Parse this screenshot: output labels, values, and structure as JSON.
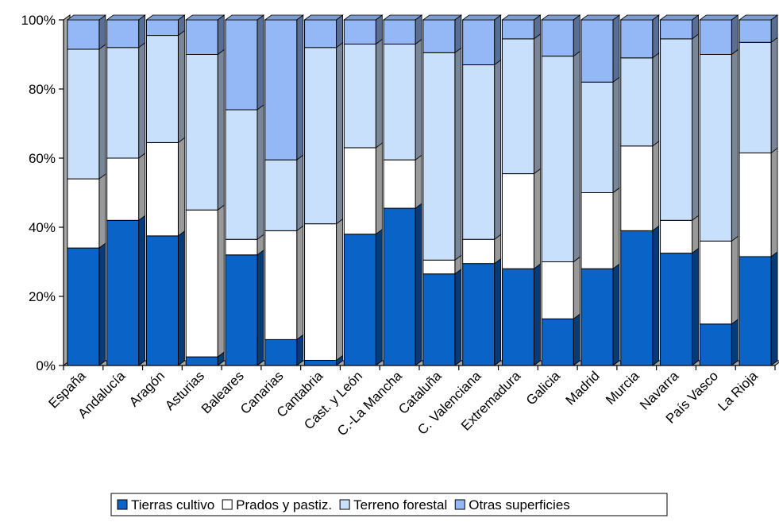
{
  "chart_data": {
    "type": "bar",
    "stacked": true,
    "percent": true,
    "three_d": true,
    "title": "",
    "xlabel": "",
    "ylabel": "",
    "ylim": [
      0,
      100
    ],
    "yticks": [
      "0%",
      "20%",
      "40%",
      "60%",
      "80%",
      "100%"
    ],
    "ytick_values": [
      0,
      20,
      40,
      60,
      80,
      100
    ],
    "grid": false,
    "legend_position": "bottom",
    "categories": [
      "España",
      "Andalucía",
      "Aragón",
      "Asturias",
      "Baleares",
      "Canarias",
      "Cantabria",
      "Cast. y León",
      "C.-La Mancha",
      "Cataluña",
      "C. Valenciana",
      "Extremadura",
      "Galicia",
      "Madrid",
      "Murcia",
      "Navarra",
      "País Vasco",
      "La Rioja"
    ],
    "series": [
      {
        "name": "Tierras cultivo",
        "color": "#0a63c6",
        "values": [
          34,
          42,
          37.5,
          2.5,
          32,
          7.5,
          1.5,
          38,
          45.5,
          26.5,
          29.5,
          28,
          13.5,
          28,
          39,
          32.5,
          12,
          31.5
        ]
      },
      {
        "name": "Prados y pastiz.",
        "color": "#ffffff",
        "values": [
          20,
          18,
          27,
          42.5,
          4.5,
          31.5,
          39.5,
          25,
          14,
          4,
          7,
          27.5,
          16.5,
          22,
          24.5,
          9.5,
          24,
          30
        ]
      },
      {
        "name": "Terreno forestal",
        "color": "#c8e0fb",
        "values": [
          37.5,
          32,
          31,
          45,
          37.5,
          20.5,
          51,
          30,
          33.5,
          60,
          50.5,
          39,
          59.5,
          32,
          25.5,
          52.5,
          54,
          32
        ]
      },
      {
        "name": "Otras superficies",
        "color": "#94b8f6",
        "values": [
          8.5,
          8,
          4.5,
          10,
          26,
          40.5,
          8,
          7,
          7,
          9.5,
          13,
          5.5,
          10.5,
          18,
          11,
          5.5,
          10,
          6.5
        ]
      }
    ]
  }
}
